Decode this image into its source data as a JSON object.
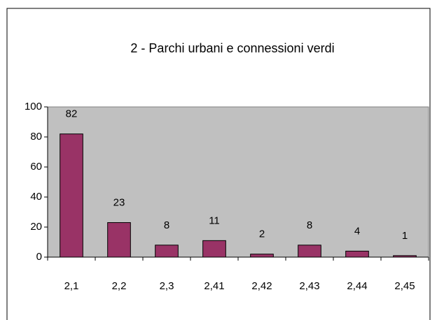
{
  "chart_data": {
    "type": "bar",
    "title": "2 - Parchi urbani e connessioni verdi",
    "categories": [
      "2,1",
      "2,2",
      "2,3",
      "2,41",
      "2,42",
      "2,43",
      "2,44",
      "2,45"
    ],
    "values": [
      82,
      23,
      8,
      11,
      2,
      8,
      4,
      1
    ],
    "color": "#993366",
    "plot_background": "#c0c0c0",
    "ylim": [
      0,
      100
    ],
    "yticks": [
      0,
      20,
      40,
      60,
      80,
      100
    ],
    "grid": false,
    "data_labels": true
  }
}
